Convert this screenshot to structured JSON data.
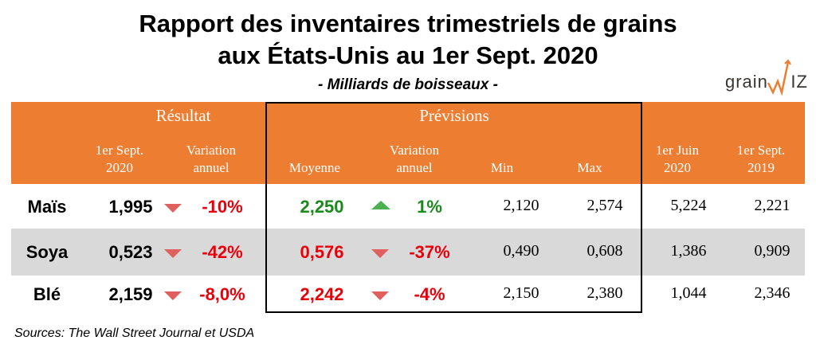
{
  "title_line1": "Rapport des inventaires trimestriels de grains",
  "title_line2": "aux États-Unis au 1er Sept. 2020",
  "subtitle": "- Milliards de boisseaux -",
  "logo": "grainWIZ",
  "colors": {
    "header": "#ED7D31",
    "alt_row": "#D9D9D9",
    "negative": "#E8000B",
    "positive": "#1A8A1A"
  },
  "headers": {
    "resultat": "Résultat",
    "previsions": "Prévisions",
    "sept2020_1": "1er Sept.",
    "sept2020_2": "2020",
    "var_1": "Variation",
    "var_2": "annuel",
    "moyenne": "Moyenne",
    "pvar_1": "Variation",
    "pvar_2": "annuel",
    "min": "Min",
    "max": "Max",
    "juin_1": "1er Juin",
    "juin_2": "2020",
    "sept2019_1": "1er Sept.",
    "sept2019_2": "2019"
  },
  "rows": [
    {
      "name": "Maïs",
      "sept2020": "1,995",
      "var_icon": "triangle-down",
      "var": "-10%",
      "moyenne": "2,250",
      "moyenne_color": "green",
      "pvar_icon": "triangle-up",
      "pvar": "1%",
      "pvar_color": "green",
      "min": "2,120",
      "max": "2,574",
      "juin2020": "5,224",
      "sept2019": "2,221"
    },
    {
      "name": "Soya",
      "sept2020": "0,523",
      "var_icon": "triangle-down",
      "var": "-42%",
      "moyenne": "0,576",
      "moyenne_color": "red",
      "pvar_icon": "triangle-down",
      "pvar": "-37%",
      "pvar_color": "red",
      "min": "0,490",
      "max": "0,608",
      "juin2020": "1,386",
      "sept2019": "0,909"
    },
    {
      "name": "Blé",
      "sept2020": "2,159",
      "var_icon": "triangle-down",
      "var": "-8,0%",
      "moyenne": "2,242",
      "moyenne_color": "red",
      "pvar_icon": "triangle-down",
      "pvar": "-4%",
      "pvar_color": "red",
      "min": "2,150",
      "max": "2,380",
      "juin2020": "1,044",
      "sept2019": "2,346"
    }
  ],
  "source": "Sources: The Wall Street Journal et USDA"
}
